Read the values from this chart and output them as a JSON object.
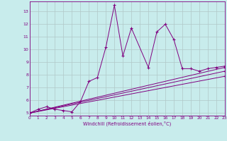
{
  "xlabel": "Windchill (Refroidissement éolien,°C)",
  "ylabel": "",
  "bg_color": "#c8ecec",
  "line_color": "#800080",
  "grid_color": "#b0c8c8",
  "series1_x": [
    0,
    1,
    2,
    3,
    4,
    5,
    6,
    7,
    8,
    9,
    10,
    11,
    12,
    14,
    15,
    16,
    17,
    18,
    19,
    20,
    21,
    22,
    23
  ],
  "series1_y": [
    5.0,
    5.3,
    5.5,
    5.3,
    5.2,
    5.1,
    5.9,
    7.5,
    7.8,
    10.2,
    13.5,
    9.5,
    11.7,
    8.6,
    11.4,
    12.0,
    10.8,
    8.5,
    8.5,
    8.3,
    8.5,
    8.6,
    8.7
  ],
  "series2_x": [
    0,
    23
  ],
  "series2_y": [
    5.0,
    8.6
  ],
  "series3_x": [
    0,
    23
  ],
  "series3_y": [
    5.0,
    8.3
  ],
  "series4_x": [
    0,
    23
  ],
  "series4_y": [
    5.0,
    7.9
  ],
  "xlim": [
    0,
    23
  ],
  "ylim": [
    4.8,
    13.8
  ],
  "yticks": [
    5,
    6,
    7,
    8,
    9,
    10,
    11,
    12,
    13
  ],
  "xticks": [
    0,
    1,
    2,
    3,
    4,
    5,
    6,
    7,
    8,
    9,
    10,
    11,
    12,
    13,
    14,
    15,
    16,
    17,
    18,
    19,
    20,
    21,
    22,
    23
  ]
}
